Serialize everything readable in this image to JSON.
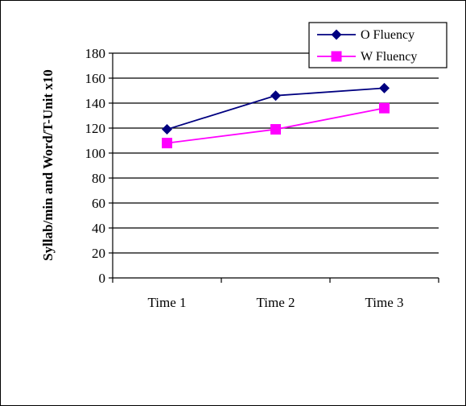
{
  "chart_data": {
    "type": "line",
    "categories": [
      "Time 1",
      "Time 2",
      "Time 3"
    ],
    "series": [
      {
        "name": "O Fluency",
        "values": [
          119,
          146,
          152
        ],
        "color": "#000080",
        "marker": "diamond"
      },
      {
        "name": "W Fluency",
        "values": [
          108,
          119,
          136
        ],
        "color": "#ff00ff",
        "marker": "square"
      }
    ],
    "ylabel": "Syllab/min and Word/T-Unit x10",
    "xlabel": "",
    "ylim": [
      0,
      180
    ],
    "yticks": [
      0,
      20,
      40,
      60,
      80,
      100,
      120,
      140,
      160,
      180
    ],
    "grid": true,
    "legend_position": "top-right"
  }
}
